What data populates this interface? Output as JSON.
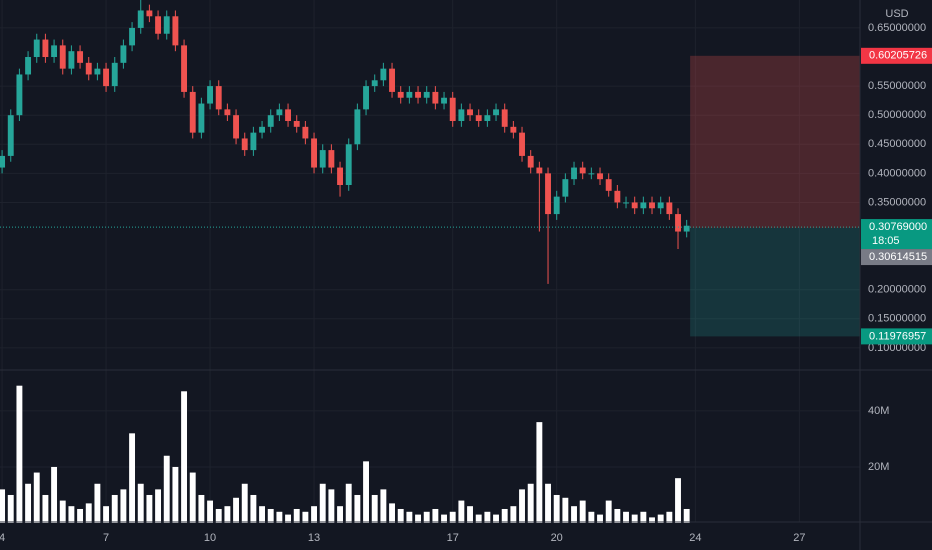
{
  "chart_data": {
    "type": "candlestick",
    "currency": "USD",
    "x": [
      4,
      4.25,
      4.5,
      4.75,
      5,
      5.25,
      5.5,
      5.75,
      6,
      6.25,
      6.5,
      6.75,
      7,
      7.25,
      7.5,
      7.75,
      8,
      8.25,
      8.5,
      8.75,
      9,
      9.25,
      9.5,
      9.75,
      10,
      10.25,
      10.5,
      10.75,
      11,
      11.25,
      11.5,
      11.75,
      12,
      12.25,
      12.5,
      12.75,
      13,
      13.25,
      13.5,
      13.75,
      14,
      14.25,
      14.5,
      14.75,
      15,
      15.25,
      15.5,
      15.75,
      16,
      16.25,
      16.5,
      16.75,
      17,
      17.25,
      17.5,
      17.75,
      18,
      18.25,
      18.5,
      18.75,
      19,
      19.25,
      19.5,
      19.75,
      20,
      20.25,
      20.5,
      20.75,
      21,
      21.25,
      21.5,
      21.75,
      22,
      22.25,
      22.5,
      22.75,
      23,
      23.25,
      23.5,
      23.75
    ],
    "open": [
      0.41,
      0.43,
      0.5,
      0.57,
      0.6,
      0.63,
      0.6,
      0.62,
      0.58,
      0.61,
      0.59,
      0.57,
      0.58,
      0.55,
      0.59,
      0.62,
      0.65,
      0.68,
      0.67,
      0.64,
      0.67,
      0.62,
      0.54,
      0.47,
      0.52,
      0.55,
      0.51,
      0.5,
      0.46,
      0.44,
      0.47,
      0.48,
      0.5,
      0.51,
      0.49,
      0.48,
      0.46,
      0.41,
      0.44,
      0.41,
      0.38,
      0.45,
      0.51,
      0.55,
      0.56,
      0.58,
      0.54,
      0.53,
      0.54,
      0.53,
      0.54,
      0.52,
      0.53,
      0.49,
      0.51,
      0.5,
      0.49,
      0.5,
      0.51,
      0.48,
      0.47,
      0.43,
      0.41,
      0.4,
      0.33,
      0.36,
      0.39,
      0.41,
      0.4,
      0.4,
      0.39,
      0.37,
      0.35,
      0.35,
      0.34,
      0.35,
      0.34,
      0.35,
      0.33,
      0.3
    ],
    "high": [
      0.44,
      0.51,
      0.58,
      0.61,
      0.64,
      0.64,
      0.63,
      0.63,
      0.62,
      0.62,
      0.6,
      0.59,
      0.59,
      0.6,
      0.63,
      0.66,
      0.7,
      0.69,
      0.68,
      0.68,
      0.68,
      0.63,
      0.55,
      0.53,
      0.56,
      0.56,
      0.52,
      0.51,
      0.47,
      0.48,
      0.49,
      0.51,
      0.52,
      0.52,
      0.5,
      0.49,
      0.47,
      0.45,
      0.45,
      0.42,
      0.46,
      0.52,
      0.56,
      0.57,
      0.59,
      0.59,
      0.55,
      0.55,
      0.55,
      0.55,
      0.55,
      0.54,
      0.54,
      0.52,
      0.52,
      0.51,
      0.51,
      0.52,
      0.52,
      0.49,
      0.48,
      0.44,
      0.42,
      0.41,
      0.37,
      0.4,
      0.42,
      0.42,
      0.41,
      0.41,
      0.4,
      0.38,
      0.36,
      0.36,
      0.36,
      0.36,
      0.36,
      0.36,
      0.34,
      0.32
    ],
    "low": [
      0.4,
      0.42,
      0.49,
      0.56,
      0.59,
      0.59,
      0.59,
      0.57,
      0.57,
      0.58,
      0.56,
      0.56,
      0.54,
      0.54,
      0.58,
      0.61,
      0.64,
      0.66,
      0.63,
      0.63,
      0.61,
      0.53,
      0.46,
      0.46,
      0.51,
      0.5,
      0.49,
      0.45,
      0.43,
      0.43,
      0.46,
      0.47,
      0.49,
      0.48,
      0.47,
      0.45,
      0.4,
      0.4,
      0.4,
      0.36,
      0.37,
      0.44,
      0.5,
      0.54,
      0.55,
      0.53,
      0.52,
      0.52,
      0.52,
      0.52,
      0.51,
      0.51,
      0.48,
      0.48,
      0.49,
      0.48,
      0.48,
      0.49,
      0.47,
      0.46,
      0.42,
      0.4,
      0.3,
      0.21,
      0.32,
      0.35,
      0.38,
      0.39,
      0.39,
      0.38,
      0.36,
      0.34,
      0.34,
      0.33,
      0.33,
      0.33,
      0.33,
      0.32,
      0.27,
      0.29
    ],
    "close": [
      0.43,
      0.5,
      0.57,
      0.6,
      0.63,
      0.6,
      0.62,
      0.58,
      0.61,
      0.59,
      0.57,
      0.58,
      0.55,
      0.59,
      0.62,
      0.65,
      0.68,
      0.67,
      0.64,
      0.67,
      0.62,
      0.54,
      0.47,
      0.52,
      0.55,
      0.51,
      0.5,
      0.46,
      0.44,
      0.47,
      0.48,
      0.5,
      0.51,
      0.49,
      0.48,
      0.46,
      0.41,
      0.44,
      0.41,
      0.38,
      0.45,
      0.51,
      0.55,
      0.56,
      0.58,
      0.54,
      0.53,
      0.54,
      0.53,
      0.54,
      0.52,
      0.53,
      0.49,
      0.51,
      0.5,
      0.49,
      0.5,
      0.51,
      0.48,
      0.47,
      0.43,
      0.41,
      0.4,
      0.33,
      0.36,
      0.39,
      0.41,
      0.4,
      0.4,
      0.39,
      0.37,
      0.35,
      0.35,
      0.34,
      0.35,
      0.34,
      0.35,
      0.33,
      0.3,
      0.31
    ],
    "volume": [
      12,
      10,
      49,
      14,
      18,
      10,
      20,
      8,
      6,
      5,
      7,
      14,
      6,
      10,
      12,
      32,
      14,
      10,
      12,
      24,
      20,
      47,
      18,
      10,
      8,
      5,
      6,
      9,
      14,
      10,
      6,
      5,
      4,
      3,
      5,
      4,
      6,
      14,
      12,
      6,
      14,
      10,
      22,
      10,
      12,
      7,
      5,
      4,
      3,
      4,
      5,
      3,
      4,
      8,
      6,
      3,
      4,
      3,
      5,
      6,
      12,
      14,
      36,
      14,
      10,
      9,
      6,
      8,
      4,
      3,
      8,
      5,
      4,
      3,
      4,
      2,
      3,
      4,
      16,
      5
    ],
    "up_color": "#26a69a",
    "down_color": "#ef5350",
    "volume_color": "#ffffff",
    "xlim": [
      3.94,
      28.75
    ],
    "xticks": [
      4,
      7,
      10,
      13,
      17,
      20,
      24,
      27
    ],
    "ylim": [
      0.062,
      0.698
    ],
    "yticks": [
      {
        "value": 0.1,
        "label": "0.10000000"
      },
      {
        "value": 0.15,
        "label": "0.15000000"
      },
      {
        "value": 0.2,
        "label": "0.20000000"
      },
      {
        "value": 0.35,
        "label": "0.35000000"
      },
      {
        "value": 0.4,
        "label": "0.40000000"
      },
      {
        "value": 0.45,
        "label": "0.45000000"
      },
      {
        "value": 0.5,
        "label": "0.50000000"
      },
      {
        "value": 0.55,
        "label": "0.55000000"
      },
      {
        "value": 0.65,
        "label": "0.65000000"
      }
    ],
    "volume_ylim": [
      0,
      54.6
    ],
    "volume_ticks": [
      {
        "value": 20,
        "label": "20M"
      },
      {
        "value": 40,
        "label": "40M"
      }
    ],
    "grid": true,
    "last_price": {
      "value": 0.30769,
      "label": "0.30769000"
    },
    "countdown": "18:05",
    "position": {
      "x_start": 23.85,
      "stop": {
        "value": 0.60205726,
        "label": "0.60205726"
      },
      "entry": {
        "value": 0.30614515,
        "label": "0.30614515"
      },
      "target": {
        "value": 0.11976957,
        "label": "0.11976957"
      }
    }
  }
}
